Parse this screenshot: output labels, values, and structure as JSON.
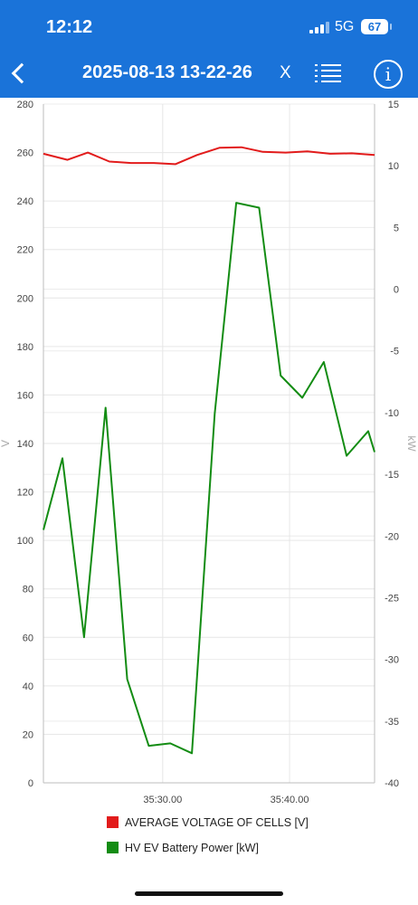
{
  "status": {
    "time": "12:12",
    "network": "5G",
    "battery": "67"
  },
  "header": {
    "title": "2025-08-13 13-22-26",
    "close_label": "X"
  },
  "chart_data": {
    "type": "line",
    "title": "",
    "left_axis": {
      "label": "V",
      "range": [
        0,
        280
      ],
      "ticks": [
        "0",
        "20",
        "40",
        "60",
        "80",
        "100",
        "120",
        "140",
        "160",
        "180",
        "200",
        "220",
        "240",
        "260",
        "280"
      ]
    },
    "right_axis": {
      "label": "kW",
      "range": [
        -40,
        15
      ],
      "ticks": [
        "-40",
        "-35",
        "-30",
        "-25",
        "-20",
        "-15",
        "-10",
        "-5",
        "0",
        "5",
        "10",
        "15"
      ]
    },
    "x_axis": {
      "range_seconds": [
        2120.6,
        2146.7
      ],
      "ticks": [
        {
          "value": 2130,
          "label": "35:30.00"
        },
        {
          "value": 2140,
          "label": "35:40.00"
        }
      ]
    },
    "grid": true,
    "series": [
      {
        "name": "AVERAGE VOLTAGE OF CELLS [V]",
        "axis": "left",
        "color": "#e21b1b",
        "x": [
          2120.6,
          2122.5,
          2124.1,
          2125.8,
          2127.5,
          2129.3,
          2131.0,
          2132.7,
          2134.5,
          2136.2,
          2137.9,
          2139.7,
          2141.4,
          2143.2,
          2144.9,
          2146.7
        ],
        "values": [
          259.5,
          257.0,
          260.0,
          256.3,
          255.7,
          255.7,
          255.2,
          259.0,
          262.0,
          262.2,
          260.3,
          260.0,
          260.5,
          259.5,
          259.7,
          259.0
        ]
      },
      {
        "name": "HV EV Battery Power [kW]",
        "axis": "right",
        "color": "#138c13",
        "x": [
          2120.6,
          2122.1,
          2123.8,
          2125.5,
          2127.2,
          2128.9,
          2130.6,
          2132.3,
          2134.1,
          2135.8,
          2137.6,
          2139.3,
          2141.0,
          2142.7,
          2144.5,
          2146.2,
          2146.7
        ],
        "values": [
          -19.5,
          -13.7,
          -28.2,
          -9.6,
          -31.6,
          -37.0,
          -36.8,
          -37.6,
          -10.1,
          7.0,
          6.6,
          -7.0,
          -8.8,
          -5.9,
          -13.5,
          -11.5,
          -13.2
        ]
      }
    ]
  }
}
